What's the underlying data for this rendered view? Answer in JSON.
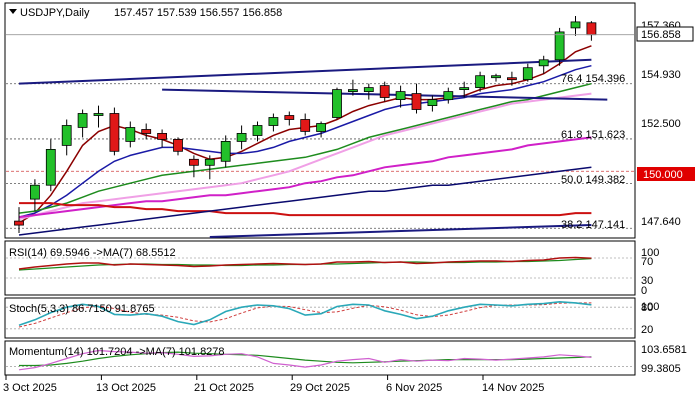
{
  "chart_data": {
    "type": "candlestick",
    "title": "USDJPY,Daily",
    "ohlc_readout": "157.457 157.539 156.557 156.858",
    "y_ticks": [
      "157.360",
      "154.930",
      "152.500",
      "147.640"
    ],
    "price_range": [
      146.7,
      158.4
    ],
    "current_price": 156.858,
    "current_price_label": "156.858",
    "level_marker": {
      "value": 150.0,
      "label": "150.000"
    },
    "x_tick_labels": [
      {
        "label": "3 Oct 2025",
        "index": 0
      },
      {
        "label": "13 Oct 2025",
        "index": 6
      },
      {
        "label": "21 Oct 2025",
        "index": 12
      },
      {
        "label": "29 Oct 2025",
        "index": 18
      },
      {
        "label": "6 Nov 2025",
        "index": 24
      },
      {
        "label": "14 Nov 2025",
        "index": 30
      }
    ],
    "fib_levels": [
      {
        "label": "76.4 154.396",
        "value": 154.396
      },
      {
        "label": "61.8 151.623",
        "value": 151.623
      },
      {
        "label": "50.0 149.382",
        "value": 149.382
      },
      {
        "label": "38.2 147.141",
        "value": 147.141
      }
    ],
    "candles": [
      {
        "o": 147.5,
        "h": 148.2,
        "l": 146.9,
        "c": 147.3
      },
      {
        "o": 148.6,
        "h": 149.6,
        "l": 148.0,
        "c": 149.3
      },
      {
        "o": 149.3,
        "h": 151.6,
        "l": 149.0,
        "c": 151.1
      },
      {
        "o": 151.3,
        "h": 152.6,
        "l": 150.8,
        "c": 152.3
      },
      {
        "o": 152.2,
        "h": 153.1,
        "l": 151.7,
        "c": 152.9
      },
      {
        "o": 152.8,
        "h": 153.3,
        "l": 152.2,
        "c": 152.9
      },
      {
        "o": 152.9,
        "h": 153.2,
        "l": 150.8,
        "c": 151.0
      },
      {
        "o": 151.5,
        "h": 152.5,
        "l": 151.2,
        "c": 152.2
      },
      {
        "o": 152.1,
        "h": 152.4,
        "l": 151.6,
        "c": 151.9
      },
      {
        "o": 151.9,
        "h": 152.1,
        "l": 151.2,
        "c": 151.6
      },
      {
        "o": 151.6,
        "h": 151.7,
        "l": 150.8,
        "c": 151.0
      },
      {
        "o": 150.6,
        "h": 150.8,
        "l": 149.7,
        "c": 150.3
      },
      {
        "o": 150.3,
        "h": 150.8,
        "l": 149.6,
        "c": 150.6
      },
      {
        "o": 150.5,
        "h": 151.8,
        "l": 150.2,
        "c": 151.5
      },
      {
        "o": 151.5,
        "h": 152.3,
        "l": 151.1,
        "c": 151.9
      },
      {
        "o": 151.8,
        "h": 152.5,
        "l": 151.5,
        "c": 152.3
      },
      {
        "o": 152.3,
        "h": 152.9,
        "l": 152.0,
        "c": 152.7
      },
      {
        "o": 152.8,
        "h": 153.0,
        "l": 152.3,
        "c": 152.6
      },
      {
        "o": 152.6,
        "h": 152.9,
        "l": 151.8,
        "c": 152.0
      },
      {
        "o": 152.0,
        "h": 152.5,
        "l": 151.7,
        "c": 152.4
      },
      {
        "o": 152.7,
        "h": 154.2,
        "l": 152.6,
        "c": 154.1
      },
      {
        "o": 154.0,
        "h": 154.6,
        "l": 153.8,
        "c": 154.1
      },
      {
        "o": 154.0,
        "h": 154.4,
        "l": 153.6,
        "c": 154.2
      },
      {
        "o": 154.3,
        "h": 154.5,
        "l": 153.5,
        "c": 153.7
      },
      {
        "o": 153.6,
        "h": 154.3,
        "l": 153.2,
        "c": 154.0
      },
      {
        "o": 153.9,
        "h": 154.4,
        "l": 152.9,
        "c": 153.1
      },
      {
        "o": 153.3,
        "h": 153.8,
        "l": 153.0,
        "c": 153.6
      },
      {
        "o": 153.6,
        "h": 154.2,
        "l": 153.4,
        "c": 154.0
      },
      {
        "o": 154.1,
        "h": 154.5,
        "l": 153.7,
        "c": 154.2
      },
      {
        "o": 154.2,
        "h": 155.0,
        "l": 154.0,
        "c": 154.8
      },
      {
        "o": 154.7,
        "h": 154.9,
        "l": 154.5,
        "c": 154.8
      },
      {
        "o": 154.7,
        "h": 155.0,
        "l": 154.3,
        "c": 154.6
      },
      {
        "o": 154.6,
        "h": 155.4,
        "l": 154.5,
        "c": 155.2
      },
      {
        "o": 155.3,
        "h": 155.8,
        "l": 154.9,
        "c": 155.6
      },
      {
        "o": 155.6,
        "h": 157.2,
        "l": 155.3,
        "c": 157.0
      },
      {
        "o": 157.2,
        "h": 157.8,
        "l": 156.8,
        "c": 157.5
      },
      {
        "o": 157.457,
        "h": 157.539,
        "l": 156.557,
        "c": 156.858
      }
    ],
    "moving_averages": [
      {
        "name": "fast-ma",
        "color": "#8b0000",
        "values": [
          147.4,
          147.9,
          148.8,
          150.0,
          151.3,
          152.0,
          152.3,
          152.1,
          151.8,
          151.6,
          151.3,
          150.9,
          150.6,
          150.7,
          151.0,
          151.4,
          151.8,
          152.1,
          152.2,
          152.3,
          152.6,
          153.0,
          153.3,
          153.5,
          153.7,
          153.6,
          153.6,
          153.7,
          153.8,
          154.1,
          154.3,
          154.4,
          154.6,
          154.9,
          155.4,
          156.0,
          156.3
        ]
      },
      {
        "name": "blue-ma",
        "color": "#1a1aa6",
        "values": [
          147.7,
          147.9,
          148.3,
          148.8,
          149.4,
          150.0,
          150.5,
          150.8,
          151.0,
          151.2,
          151.2,
          151.1,
          151.0,
          150.9,
          150.9,
          151.0,
          151.2,
          151.5,
          151.7,
          151.9,
          152.2,
          152.5,
          152.8,
          153.1,
          153.3,
          153.4,
          153.5,
          153.6,
          153.7,
          153.9,
          154.0,
          154.1,
          154.3,
          154.5,
          154.8,
          155.1,
          155.3
        ]
      },
      {
        "name": "green-ma",
        "color": "#1e8c1e",
        "values": [
          147.9,
          148.0,
          148.2,
          148.4,
          148.7,
          149.0,
          149.2,
          149.4,
          149.6,
          149.8,
          149.9,
          150.0,
          150.1,
          150.2,
          150.3,
          150.4,
          150.5,
          150.6,
          150.7,
          150.9,
          151.1,
          151.4,
          151.7,
          151.9,
          152.1,
          152.3,
          152.5,
          152.7,
          152.9,
          153.1,
          153.3,
          153.5,
          153.6,
          153.8,
          154.0,
          154.2,
          154.4
        ]
      },
      {
        "name": "pink-ma",
        "color": "#f0a0e6",
        "values": [
          147.6,
          147.8,
          148.0,
          148.2,
          148.4,
          148.5,
          148.6,
          148.7,
          148.8,
          148.9,
          149.0,
          149.1,
          149.2,
          149.3,
          149.4,
          149.6,
          149.8,
          150.0,
          150.3,
          150.6,
          150.9,
          151.2,
          151.5,
          151.8,
          152.0,
          152.2,
          152.4,
          152.6,
          152.8,
          153.0,
          153.2,
          153.4,
          153.5,
          153.6,
          153.7,
          153.8,
          153.9
        ]
      },
      {
        "name": "magenta-ma",
        "color": "#d020c8",
        "values": [
          147.7,
          147.8,
          147.9,
          148.0,
          148.1,
          148.2,
          148.3,
          148.4,
          148.5,
          148.5,
          148.6,
          148.7,
          148.8,
          148.8,
          148.9,
          149.0,
          149.1,
          149.2,
          149.4,
          149.5,
          149.7,
          149.8,
          150.0,
          150.2,
          150.3,
          150.4,
          150.5,
          150.7,
          150.8,
          150.9,
          151.0,
          151.1,
          151.3,
          151.4,
          151.5,
          151.6,
          151.7
        ]
      },
      {
        "name": "red-ma",
        "color": "#cc1010",
        "values": [
          148.4,
          148.4,
          148.4,
          148.3,
          148.3,
          148.3,
          148.2,
          148.2,
          148.1,
          148.1,
          148.0,
          148.0,
          148.0,
          147.9,
          147.9,
          147.9,
          147.9,
          147.8,
          147.8,
          147.8,
          147.8,
          147.8,
          147.8,
          147.8,
          147.8,
          147.8,
          147.8,
          147.8,
          147.8,
          147.8,
          147.8,
          147.8,
          147.8,
          147.8,
          147.8,
          147.9,
          147.9
        ]
      },
      {
        "name": "navy-ma",
        "color": "#0a0a6e",
        "values": [
          146.8,
          146.9,
          147.0,
          147.1,
          147.2,
          147.3,
          147.4,
          147.5,
          147.6,
          147.7,
          147.8,
          147.9,
          148.0,
          148.1,
          148.2,
          148.3,
          148.4,
          148.5,
          148.6,
          148.7,
          148.8,
          148.9,
          149.0,
          149.0,
          149.1,
          149.2,
          149.3,
          149.3,
          149.4,
          149.5,
          149.6,
          149.7,
          149.8,
          149.9,
          150.0,
          150.1,
          150.2
        ]
      }
    ],
    "trend_lines": [
      {
        "name": "trend-line-upper",
        "color": "#1a1a80",
        "from": [
          0,
          154.4
        ],
        "to": [
          36,
          155.6
        ]
      },
      {
        "name": "trend-line-upper-2",
        "color": "#1a1a80",
        "from": [
          9,
          154.1
        ],
        "to": [
          37,
          153.6
        ]
      },
      {
        "name": "trend-line-lower",
        "color": "#1a1a80",
        "from": [
          12,
          146.7
        ],
        "to": [
          36,
          147.3
        ]
      }
    ],
    "panels": [
      {
        "label": "RSI(14) 69.5946 ->MA(7) 68.5512",
        "y_ticks": [
          "100",
          "70",
          "30",
          "0"
        ],
        "range": [
          0,
          100
        ]
      },
      {
        "label": "Stoch(5,3,3) 86.7150 91.8765",
        "y_ticks": [
          "100",
          "80",
          "20"
        ],
        "range": [
          0,
          100
        ]
      },
      {
        "label": "Momentum(14) 101.7204 ->MA(7) 101.8278",
        "y_ticks": [
          "103.6581",
          "99.3805"
        ],
        "range": [
          98.8,
          104.4
        ]
      }
    ],
    "rsi": [
      48,
      52,
      55,
      58,
      60,
      60,
      56,
      58,
      57,
      56,
      55,
      53,
      54,
      56,
      57,
      58,
      59,
      58,
      57,
      58,
      62,
      62,
      63,
      61,
      62,
      59,
      60,
      62,
      63,
      64,
      64,
      63,
      65,
      66,
      70,
      71,
      69.59
    ],
    "rsi_ma": [
      46,
      48,
      50,
      52,
      54,
      56,
      57,
      58,
      58,
      57,
      57,
      56,
      56,
      55,
      55,
      56,
      56,
      57,
      57,
      58,
      58,
      59,
      60,
      61,
      62,
      62,
      61,
      61,
      61,
      62,
      62,
      63,
      63,
      64,
      65,
      67,
      68.55
    ],
    "stoch_k": [
      30,
      45,
      65,
      80,
      88,
      82,
      60,
      58,
      62,
      55,
      40,
      32,
      45,
      68,
      80,
      86,
      84,
      76,
      58,
      62,
      82,
      88,
      86,
      70,
      60,
      48,
      55,
      70,
      80,
      88,
      86,
      84,
      88,
      90,
      95,
      92,
      86.715
    ],
    "stoch_d": [
      25,
      35,
      50,
      65,
      78,
      83,
      76,
      66,
      60,
      58,
      52,
      42,
      39,
      48,
      64,
      78,
      83,
      82,
      73,
      65,
      67,
      77,
      85,
      81,
      72,
      59,
      54,
      58,
      68,
      79,
      85,
      86,
      86,
      87,
      91,
      92,
      91.8765
    ],
    "momentum": [
      99.4,
      99.8,
      100.6,
      101.5,
      102.4,
      103.0,
      102.8,
      102.7,
      102.5,
      102.6,
      102.3,
      101.9,
      102.0,
      102.3,
      102.4,
      101.8,
      100.6,
      100.3,
      99.9,
      100.3,
      101.0,
      101.3,
      101.5,
      100.8,
      101.3,
      101.0,
      101.2,
      101.1,
      101.5,
      101.4,
      101.2,
      101.4,
      101.6,
      101.8,
      102.2,
      102.0,
      101.7204
    ],
    "momentum_ma": [
      100.2,
      100.2,
      100.3,
      100.6,
      101.0,
      101.5,
      101.9,
      102.2,
      102.4,
      102.6,
      102.7,
      102.5,
      102.4,
      102.3,
      102.2,
      102.1,
      101.8,
      101.5,
      101.2,
      101.0,
      100.8,
      100.7,
      100.8,
      100.9,
      101.0,
      101.1,
      101.2,
      101.3,
      101.3,
      101.3,
      101.3,
      101.3,
      101.4,
      101.5,
      101.6,
      101.7,
      101.8278
    ]
  }
}
